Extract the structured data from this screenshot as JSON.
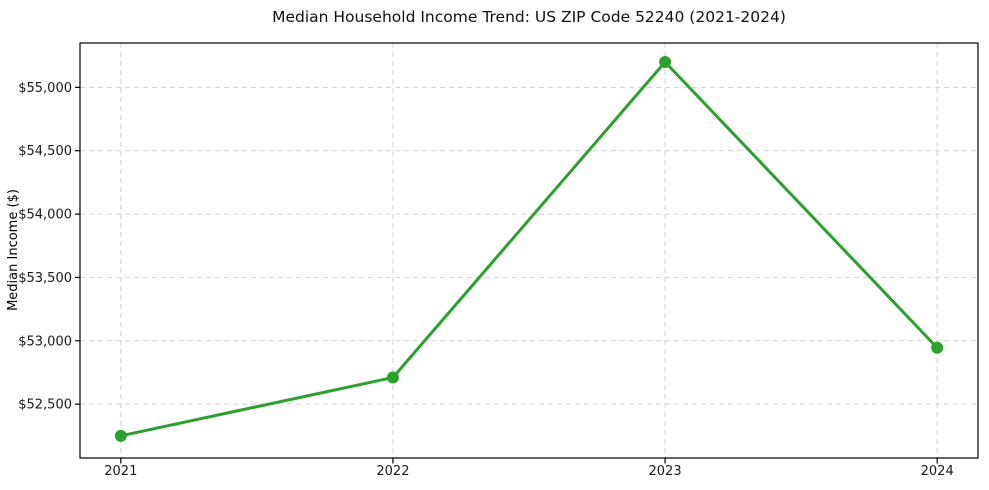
{
  "page": {
    "background": "#ffffff"
  },
  "chart_data": {
    "type": "line",
    "title": "Median Household Income Trend: US ZIP Code 52240 (2021-2024)",
    "xlabel": "",
    "ylabel": "Median Income ($)",
    "x": [
      2021,
      2022,
      2023,
      2024
    ],
    "x_tick_labels": [
      "2021",
      "2022",
      "2023",
      "2024"
    ],
    "series": [
      {
        "name": "Median Household Income",
        "values": [
          52250,
          52710,
          55200,
          52945
        ]
      }
    ],
    "yticks": [
      52500,
      53000,
      53500,
      54000,
      54500,
      55000
    ],
    "y_tick_labels": [
      "$52,500",
      "$53,000",
      "$53,500",
      "$54,000",
      "$54,500",
      "$55,000"
    ],
    "xlim": [
      2020.85,
      2024.15
    ],
    "ylim": [
      52075,
      55350
    ],
    "grid": true,
    "grid_style": "dashed",
    "legend_position": "none",
    "line_color": "#2ca02c",
    "marker_color": "#2ca02c",
    "marker_shape": "circle",
    "grid_color": "#cccccc",
    "axis_color": "#000000",
    "text_color": "#1a1a1a"
  }
}
